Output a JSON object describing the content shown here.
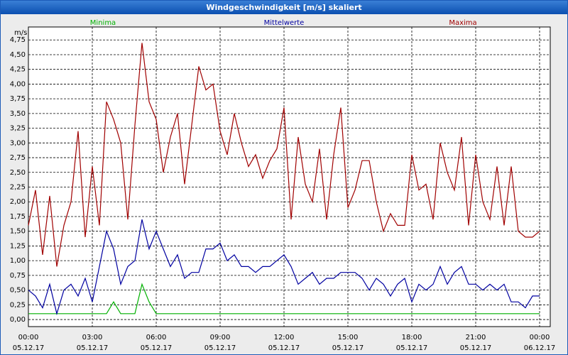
{
  "chart_data": {
    "type": "line",
    "title": "Windgeschwindigkeit [m/s] skaliert",
    "y_label": "m/s",
    "x": [
      0,
      20,
      40,
      60,
      80,
      100,
      120,
      140,
      160,
      180,
      200,
      220,
      240,
      260,
      280,
      300,
      320,
      340,
      360,
      380,
      400,
      420,
      440,
      460,
      480,
      500,
      520,
      540,
      560,
      580,
      600,
      620,
      640,
      660,
      680,
      700,
      720,
      740,
      760,
      780,
      800,
      820,
      840,
      860,
      880,
      900,
      920,
      940,
      960,
      980,
      1000,
      1020,
      1040,
      1060,
      1080,
      1100,
      1120,
      1140,
      1160,
      1180,
      1200,
      1220,
      1240,
      1260,
      1280,
      1300,
      1320,
      1340,
      1360,
      1380,
      1400,
      1420,
      1440
    ],
    "series": [
      {
        "name": "Minima",
        "color": "#00b000",
        "values": [
          0.1,
          0.1,
          0.1,
          0.1,
          0.1,
          0.1,
          0.1,
          0.1,
          0.1,
          0.1,
          0.1,
          0.1,
          0.3,
          0.1,
          0.1,
          0.1,
          0.6,
          0.3,
          0.1,
          0.1,
          0.1,
          0.1,
          0.1,
          0.1,
          0.1,
          0.1,
          0.1,
          0.1,
          0.1,
          0.1,
          0.1,
          0.1,
          0.1,
          0.1,
          0.1,
          0.1,
          0.1,
          0.1,
          0.1,
          0.1,
          0.1,
          0.1,
          0.1,
          0.1,
          0.1,
          0.1,
          0.1,
          0.1,
          0.1,
          0.1,
          0.1,
          0.1,
          0.1,
          0.1,
          0.1,
          0.1,
          0.1,
          0.1,
          0.1,
          0.1,
          0.1,
          0.1,
          0.1,
          0.1,
          0.1,
          0.1,
          0.1,
          0.1,
          0.1,
          0.1,
          0.1,
          0.1,
          0.1
        ]
      },
      {
        "name": "Mittelwerte",
        "color": "#0000a0",
        "values": [
          0.5,
          0.4,
          0.2,
          0.6,
          0.1,
          0.5,
          0.6,
          0.4,
          0.7,
          0.3,
          0.9,
          1.5,
          1.2,
          0.6,
          0.9,
          1.0,
          1.7,
          1.2,
          1.5,
          1.2,
          0.9,
          1.1,
          0.7,
          0.8,
          0.8,
          1.2,
          1.2,
          1.3,
          1.0,
          1.1,
          0.9,
          0.9,
          0.8,
          0.9,
          0.9,
          1.0,
          1.1,
          0.9,
          0.6,
          0.7,
          0.8,
          0.6,
          0.7,
          0.7,
          0.8,
          0.8,
          0.8,
          0.7,
          0.5,
          0.7,
          0.6,
          0.4,
          0.6,
          0.7,
          0.3,
          0.6,
          0.5,
          0.6,
          0.9,
          0.6,
          0.8,
          0.9,
          0.6,
          0.6,
          0.5,
          0.6,
          0.5,
          0.6,
          0.3,
          0.3,
          0.2,
          0.4,
          0.4
        ]
      },
      {
        "name": "Maxima",
        "color": "#a00000",
        "values": [
          1.6,
          2.2,
          1.1,
          2.1,
          0.9,
          1.6,
          2.0,
          3.2,
          1.4,
          2.6,
          1.6,
          3.7,
          3.4,
          3.0,
          1.7,
          3.3,
          4.7,
          3.7,
          3.4,
          2.5,
          3.1,
          3.5,
          2.3,
          3.3,
          4.3,
          3.9,
          4.0,
          3.2,
          2.8,
          3.5,
          3.0,
          2.6,
          2.8,
          2.4,
          2.7,
          2.9,
          3.6,
          1.7,
          3.1,
          2.3,
          2.0,
          2.9,
          1.7,
          2.8,
          3.6,
          1.9,
          2.2,
          2.7,
          2.7,
          2.0,
          1.5,
          1.8,
          1.6,
          1.6,
          2.8,
          2.2,
          2.3,
          1.7,
          3.0,
          2.5,
          2.2,
          3.1,
          1.6,
          2.8,
          2.0,
          1.7,
          2.6,
          1.6,
          2.6,
          1.5,
          1.4,
          1.4,
          1.5
        ]
      }
    ],
    "xlim": [
      0,
      1470
    ],
    "xticks": [
      {
        "value": 0,
        "label": "00:00"
      },
      {
        "value": 180,
        "label": "03:00"
      },
      {
        "value": 360,
        "label": "06:00"
      },
      {
        "value": 540,
        "label": "09:00"
      },
      {
        "value": 720,
        "label": "12:00"
      },
      {
        "value": 900,
        "label": "15:00"
      },
      {
        "value": 1080,
        "label": "18:00"
      },
      {
        "value": 1260,
        "label": "21:00"
      },
      {
        "value": 1440,
        "label": "00:00"
      }
    ],
    "xtick_dates": [
      "05.12.17",
      "05.12.17",
      "05.12.17",
      "05.12.17",
      "05.12.17",
      "05.12.17",
      "05.12.17",
      "05.12.17",
      "06.12.17"
    ],
    "ylim": [
      -0.12,
      4.97
    ],
    "yticks": [
      {
        "value": 0,
        "label": "0,00"
      },
      {
        "value": 0.25,
        "label": "0,25"
      },
      {
        "value": 0.5,
        "label": "0,50"
      },
      {
        "value": 0.75,
        "label": "0,75"
      },
      {
        "value": 1,
        "label": "1,00"
      },
      {
        "value": 1.25,
        "label": "1,25"
      },
      {
        "value": 1.5,
        "label": "1,50"
      },
      {
        "value": 1.75,
        "label": "1,75"
      },
      {
        "value": 2,
        "label": "2,00"
      },
      {
        "value": 2.25,
        "label": "2,25"
      },
      {
        "value": 2.5,
        "label": "2,50"
      },
      {
        "value": 2.75,
        "label": "2,75"
      },
      {
        "value": 3,
        "label": "3,00"
      },
      {
        "value": 3.25,
        "label": "3,25"
      },
      {
        "value": 3.5,
        "label": "3,50"
      },
      {
        "value": 3.75,
        "label": "3,75"
      },
      {
        "value": 4,
        "label": "4,00"
      },
      {
        "value": 4.25,
        "label": "4,25"
      },
      {
        "value": 4.5,
        "label": "4,50"
      },
      {
        "value": 4.75,
        "label": "4,75"
      }
    ],
    "grid": true
  }
}
